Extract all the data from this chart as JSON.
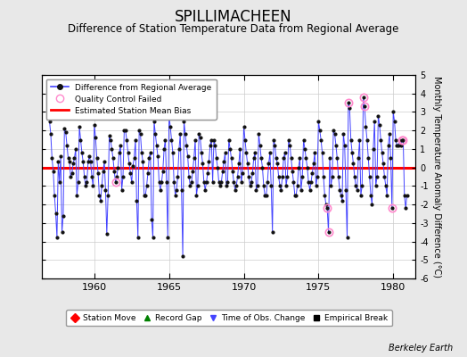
{
  "title": "SPILLIMACHEEN",
  "subtitle": "Difference of Station Temperature Data from Regional Average",
  "ylabel": "Monthly Temperature Anomaly Difference (°C)",
  "credit": "Berkeley Earth",
  "bias": 0.0,
  "ylim": [
    -6,
    5
  ],
  "xlim": [
    1956.5,
    1981.5
  ],
  "xticks": [
    1960,
    1965,
    1970,
    1975,
    1980
  ],
  "yticks": [
    -6,
    -5,
    -4,
    -3,
    -2,
    -1,
    0,
    1,
    2,
    3,
    4,
    5
  ],
  "background_color": "#e8e8e8",
  "plot_bg_color": "#ffffff",
  "line_color": "#4444ff",
  "dot_color": "#111111",
  "bias_color": "#ff0000",
  "qc_color": "#ff88cc",
  "title_fontsize": 12,
  "subtitle_fontsize": 8.5,
  "data": [
    [
      1957.0,
      2.5
    ],
    [
      1957.083,
      1.8
    ],
    [
      1957.167,
      0.5
    ],
    [
      1957.25,
      -0.2
    ],
    [
      1957.333,
      -1.5
    ],
    [
      1957.417,
      -2.5
    ],
    [
      1957.5,
      -3.8
    ],
    [
      1957.583,
      0.3
    ],
    [
      1957.667,
      -0.8
    ],
    [
      1957.75,
      0.6
    ],
    [
      1957.833,
      -3.5
    ],
    [
      1957.917,
      -2.6
    ],
    [
      1958.0,
      2.1
    ],
    [
      1958.083,
      1.9
    ],
    [
      1958.167,
      1.2
    ],
    [
      1958.25,
      0.5
    ],
    [
      1958.333,
      0.3
    ],
    [
      1958.417,
      -0.5
    ],
    [
      1958.5,
      -0.3
    ],
    [
      1958.583,
      0.2
    ],
    [
      1958.667,
      0.5
    ],
    [
      1958.75,
      1.0
    ],
    [
      1958.833,
      -1.5
    ],
    [
      1958.917,
      -0.8
    ],
    [
      1959.0,
      2.2
    ],
    [
      1959.083,
      1.5
    ],
    [
      1959.167,
      0.8
    ],
    [
      1959.25,
      0.3
    ],
    [
      1959.333,
      -0.5
    ],
    [
      1959.417,
      -1.0
    ],
    [
      1959.5,
      -0.8
    ],
    [
      1959.583,
      0.3
    ],
    [
      1959.667,
      0.6
    ],
    [
      1959.75,
      0.3
    ],
    [
      1959.833,
      -0.5
    ],
    [
      1959.917,
      -1.0
    ],
    [
      1960.0,
      2.3
    ],
    [
      1960.083,
      1.6
    ],
    [
      1960.167,
      0.5
    ],
    [
      1960.25,
      -0.3
    ],
    [
      1960.333,
      -1.5
    ],
    [
      1960.417,
      -1.8
    ],
    [
      1960.5,
      -1.0
    ],
    [
      1960.583,
      -0.2
    ],
    [
      1960.667,
      0.3
    ],
    [
      1960.75,
      -1.2
    ],
    [
      1960.833,
      -3.6
    ],
    [
      1960.917,
      -1.5
    ],
    [
      1961.0,
      1.7
    ],
    [
      1961.083,
      1.5
    ],
    [
      1961.167,
      1.0
    ],
    [
      1961.25,
      0.5
    ],
    [
      1961.333,
      -0.2
    ],
    [
      1961.417,
      -0.8
    ],
    [
      1961.5,
      -0.5
    ],
    [
      1961.583,
      0.0
    ],
    [
      1961.667,
      0.8
    ],
    [
      1961.75,
      1.2
    ],
    [
      1961.833,
      -1.2
    ],
    [
      1961.917,
      -0.5
    ],
    [
      1962.0,
      2.0
    ],
    [
      1962.083,
      2.0
    ],
    [
      1962.167,
      1.5
    ],
    [
      1962.25,
      0.8
    ],
    [
      1962.333,
      0.2
    ],
    [
      1962.417,
      -0.3
    ],
    [
      1962.5,
      -0.8
    ],
    [
      1962.583,
      0.1
    ],
    [
      1962.667,
      0.5
    ],
    [
      1962.75,
      1.5
    ],
    [
      1962.833,
      -1.8
    ],
    [
      1962.917,
      -3.8
    ],
    [
      1963.0,
      2.0
    ],
    [
      1963.083,
      1.8
    ],
    [
      1963.167,
      0.8
    ],
    [
      1963.25,
      0.3
    ],
    [
      1963.333,
      -1.5
    ],
    [
      1963.417,
      -1.5
    ],
    [
      1963.5,
      -1.0
    ],
    [
      1963.583,
      -0.3
    ],
    [
      1963.667,
      0.5
    ],
    [
      1963.75,
      0.8
    ],
    [
      1963.833,
      -2.8
    ],
    [
      1963.917,
      -3.8
    ],
    [
      1964.0,
      2.5
    ],
    [
      1964.083,
      1.8
    ],
    [
      1964.167,
      1.2
    ],
    [
      1964.25,
      0.6
    ],
    [
      1964.333,
      -0.8
    ],
    [
      1964.417,
      -1.2
    ],
    [
      1964.5,
      -0.8
    ],
    [
      1964.583,
      -0.2
    ],
    [
      1964.667,
      1.0
    ],
    [
      1964.75,
      1.5
    ],
    [
      1964.833,
      -0.8
    ],
    [
      1964.917,
      -3.8
    ],
    [
      1965.0,
      2.8
    ],
    [
      1965.083,
      2.2
    ],
    [
      1965.167,
      1.5
    ],
    [
      1965.25,
      0.8
    ],
    [
      1965.333,
      -0.8
    ],
    [
      1965.417,
      -1.5
    ],
    [
      1965.5,
      -1.2
    ],
    [
      1965.583,
      -0.5
    ],
    [
      1965.667,
      1.0
    ],
    [
      1965.75,
      1.8
    ],
    [
      1965.833,
      -1.2
    ],
    [
      1965.917,
      -4.8
    ],
    [
      1966.0,
      2.5
    ],
    [
      1966.083,
      1.8
    ],
    [
      1966.167,
      1.2
    ],
    [
      1966.25,
      0.6
    ],
    [
      1966.333,
      -0.5
    ],
    [
      1966.417,
      -1.0
    ],
    [
      1966.5,
      -0.8
    ],
    [
      1966.583,
      -0.2
    ],
    [
      1966.667,
      0.5
    ],
    [
      1966.75,
      1.5
    ],
    [
      1966.833,
      -1.5
    ],
    [
      1966.917,
      -1.0
    ],
    [
      1967.0,
      1.8
    ],
    [
      1967.083,
      1.6
    ],
    [
      1967.167,
      0.8
    ],
    [
      1967.25,
      0.2
    ],
    [
      1967.333,
      -0.8
    ],
    [
      1967.417,
      -1.2
    ],
    [
      1967.5,
      -0.8
    ],
    [
      1967.583,
      -0.3
    ],
    [
      1967.667,
      0.3
    ],
    [
      1967.75,
      1.2
    ],
    [
      1967.833,
      1.5
    ],
    [
      1967.917,
      -0.8
    ],
    [
      1968.0,
      1.5
    ],
    [
      1968.083,
      1.2
    ],
    [
      1968.167,
      0.5
    ],
    [
      1968.25,
      0.0
    ],
    [
      1968.333,
      -0.8
    ],
    [
      1968.417,
      -1.0
    ],
    [
      1968.5,
      -0.8
    ],
    [
      1968.583,
      -0.2
    ],
    [
      1968.667,
      0.3
    ],
    [
      1968.75,
      0.8
    ],
    [
      1968.833,
      -1.0
    ],
    [
      1968.917,
      -0.8
    ],
    [
      1969.0,
      1.5
    ],
    [
      1969.083,
      1.0
    ],
    [
      1969.167,
      0.5
    ],
    [
      1969.25,
      -0.2
    ],
    [
      1969.333,
      -0.8
    ],
    [
      1969.417,
      -1.2
    ],
    [
      1969.5,
      -1.0
    ],
    [
      1969.583,
      -0.5
    ],
    [
      1969.667,
      0.2
    ],
    [
      1969.75,
      1.0
    ],
    [
      1969.833,
      -0.8
    ],
    [
      1969.917,
      -0.3
    ],
    [
      1970.0,
      2.2
    ],
    [
      1970.083,
      1.5
    ],
    [
      1970.167,
      0.8
    ],
    [
      1970.25,
      0.2
    ],
    [
      1970.333,
      -0.5
    ],
    [
      1970.417,
      -1.0
    ],
    [
      1970.5,
      -0.8
    ],
    [
      1970.583,
      -0.3
    ],
    [
      1970.667,
      0.5
    ],
    [
      1970.75,
      0.8
    ],
    [
      1970.833,
      -1.2
    ],
    [
      1970.917,
      -1.0
    ],
    [
      1971.0,
      1.8
    ],
    [
      1971.083,
      1.2
    ],
    [
      1971.167,
      0.5
    ],
    [
      1971.25,
      0.0
    ],
    [
      1971.333,
      -1.0
    ],
    [
      1971.417,
      -1.5
    ],
    [
      1971.5,
      -1.5
    ],
    [
      1971.583,
      -0.8
    ],
    [
      1971.667,
      0.2
    ],
    [
      1971.75,
      0.8
    ],
    [
      1971.833,
      -1.0
    ],
    [
      1971.917,
      -3.5
    ],
    [
      1972.0,
      1.5
    ],
    [
      1972.083,
      1.2
    ],
    [
      1972.167,
      0.5
    ],
    [
      1972.25,
      0.2
    ],
    [
      1972.333,
      -0.5
    ],
    [
      1972.417,
      -1.0
    ],
    [
      1972.5,
      -1.2
    ],
    [
      1972.583,
      -0.5
    ],
    [
      1972.667,
      0.5
    ],
    [
      1972.75,
      0.8
    ],
    [
      1972.833,
      -1.0
    ],
    [
      1972.917,
      -0.5
    ],
    [
      1973.0,
      1.5
    ],
    [
      1973.083,
      1.2
    ],
    [
      1973.167,
      0.5
    ],
    [
      1973.25,
      -0.2
    ],
    [
      1973.333,
      -0.8
    ],
    [
      1973.417,
      -1.5
    ],
    [
      1973.5,
      -1.5
    ],
    [
      1973.583,
      -1.0
    ],
    [
      1973.667,
      0.0
    ],
    [
      1973.75,
      0.5
    ],
    [
      1973.833,
      -1.2
    ],
    [
      1973.917,
      -0.5
    ],
    [
      1974.0,
      1.5
    ],
    [
      1974.083,
      1.0
    ],
    [
      1974.167,
      0.5
    ],
    [
      1974.25,
      0.0
    ],
    [
      1974.333,
      -0.8
    ],
    [
      1974.417,
      -1.2
    ],
    [
      1974.5,
      -0.8
    ],
    [
      1974.583,
      -0.3
    ],
    [
      1974.667,
      0.2
    ],
    [
      1974.75,
      0.8
    ],
    [
      1974.833,
      -1.0
    ],
    [
      1974.917,
      -0.5
    ],
    [
      1975.0,
      2.5
    ],
    [
      1975.083,
      2.0
    ],
    [
      1975.167,
      1.5
    ],
    [
      1975.25,
      0.8
    ],
    [
      1975.333,
      -0.5
    ],
    [
      1975.417,
      -1.5
    ],
    [
      1975.5,
      -2.0
    ],
    [
      1975.583,
      -2.2
    ],
    [
      1975.667,
      -3.5
    ],
    [
      1975.75,
      0.5
    ],
    [
      1975.833,
      -1.0
    ],
    [
      1975.917,
      -0.5
    ],
    [
      1976.0,
      2.0
    ],
    [
      1976.083,
      1.8
    ],
    [
      1976.167,
      1.2
    ],
    [
      1976.25,
      0.5
    ],
    [
      1976.333,
      -0.5
    ],
    [
      1976.417,
      -1.2
    ],
    [
      1976.5,
      -1.5
    ],
    [
      1976.583,
      -1.8
    ],
    [
      1976.667,
      1.8
    ],
    [
      1976.75,
      1.2
    ],
    [
      1976.833,
      -1.2
    ],
    [
      1976.917,
      -3.8
    ],
    [
      1977.0,
      3.5
    ],
    [
      1977.083,
      3.2
    ],
    [
      1977.167,
      1.5
    ],
    [
      1977.25,
      0.8
    ],
    [
      1977.333,
      0.2
    ],
    [
      1977.417,
      -0.5
    ],
    [
      1977.5,
      -1.0
    ],
    [
      1977.583,
      -1.2
    ],
    [
      1977.667,
      0.5
    ],
    [
      1977.75,
      1.5
    ],
    [
      1977.833,
      -1.5
    ],
    [
      1977.917,
      -1.0
    ],
    [
      1978.0,
      3.8
    ],
    [
      1978.083,
      3.3
    ],
    [
      1978.167,
      2.2
    ],
    [
      1978.25,
      1.5
    ],
    [
      1978.333,
      0.5
    ],
    [
      1978.417,
      -0.5
    ],
    [
      1978.5,
      -1.5
    ],
    [
      1978.583,
      -2.0
    ],
    [
      1978.667,
      1.0
    ],
    [
      1978.75,
      2.5
    ],
    [
      1978.833,
      -1.0
    ],
    [
      1978.917,
      -0.5
    ],
    [
      1979.0,
      2.8
    ],
    [
      1979.083,
      2.3
    ],
    [
      1979.167,
      1.5
    ],
    [
      1979.25,
      0.8
    ],
    [
      1979.333,
      0.2
    ],
    [
      1979.417,
      -0.5
    ],
    [
      1979.5,
      -1.0
    ],
    [
      1979.583,
      -1.5
    ],
    [
      1979.667,
      1.2
    ],
    [
      1979.75,
      1.8
    ],
    [
      1979.833,
      0.5
    ],
    [
      1979.917,
      -2.2
    ],
    [
      1980.0,
      3.0
    ],
    [
      1980.083,
      2.5
    ],
    [
      1980.167,
      1.5
    ],
    [
      1980.25,
      1.2
    ],
    [
      1980.333,
      1.2
    ],
    [
      1980.417,
      1.5
    ],
    [
      1980.5,
      1.2
    ],
    [
      1980.583,
      1.5
    ],
    [
      1980.667,
      1.5
    ],
    [
      1980.75,
      -1.5
    ],
    [
      1980.833,
      -2.2
    ],
    [
      1980.917,
      -1.5
    ]
  ],
  "qc_failed": [
    [
      1961.417,
      -0.8
    ],
    [
      1975.583,
      -2.2
    ],
    [
      1975.667,
      -3.5
    ],
    [
      1977.0,
      3.5
    ],
    [
      1978.0,
      3.8
    ],
    [
      1978.083,
      3.3
    ],
    [
      1979.917,
      -2.2
    ],
    [
      1980.583,
      1.5
    ],
    [
      1980.667,
      1.5
    ]
  ]
}
